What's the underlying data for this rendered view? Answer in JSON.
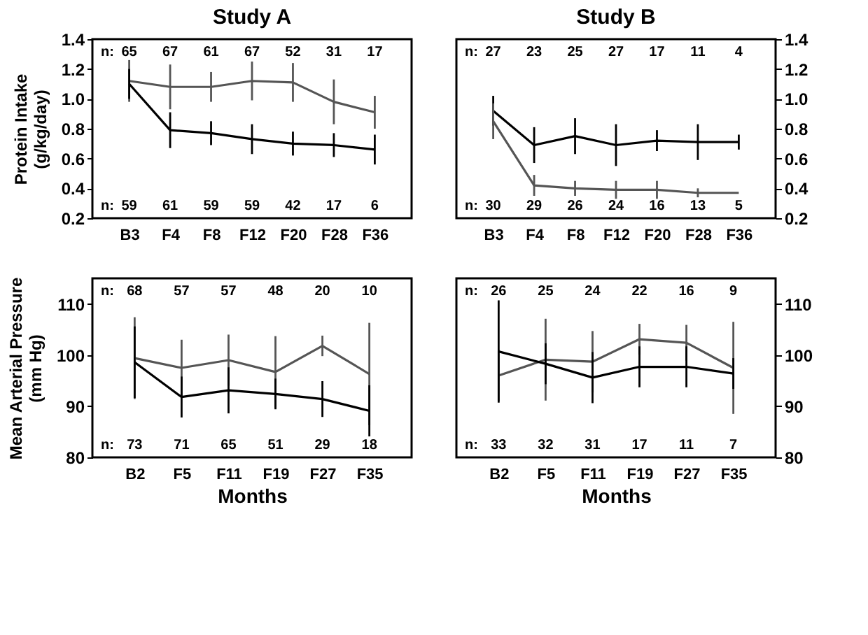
{
  "chart_data": [
    {
      "type": "line",
      "title": "Study A",
      "ylabel": "Protein Intake\n(g/kg/day)",
      "categories": [
        "B3",
        "F4",
        "F8",
        "F12",
        "F20",
        "F28",
        "F36"
      ],
      "ylim": [
        0.2,
        1.4
      ],
      "yticks": [
        0.2,
        0.4,
        0.6,
        0.8,
        {
          "value": 1.0,
          "label": "1.0"
        },
        1.2,
        1.4
      ],
      "grid": false,
      "series": [
        {
          "color": "#555555",
          "values": [
            1.12,
            1.08,
            1.08,
            1.12,
            1.11,
            0.98,
            0.91
          ],
          "errors": [
            0.14,
            0.15,
            0.1,
            0.13,
            0.13,
            0.15,
            0.11
          ]
        },
        {
          "color": "#000000",
          "values": [
            1.1,
            0.79,
            0.77,
            0.73,
            0.7,
            0.69,
            0.66
          ],
          "errors": [
            0.1,
            0.12,
            0.08,
            0.1,
            0.08,
            0.08,
            0.1
          ]
        }
      ],
      "annotations": [
        "n:",
        "65",
        "67",
        "61",
        "67",
        "52",
        "31",
        "17",
        "n:",
        "59",
        "61",
        "59",
        "59",
        "42",
        "17",
        "6"
      ]
    },
    {
      "type": "line",
      "title": "Study B",
      "categories": [
        "B3",
        "F4",
        "F8",
        "F12",
        "F20",
        "F28",
        "F36"
      ],
      "y2lim": [
        0.2,
        1.4
      ],
      "y2ticks": [
        0.2,
        0.4,
        0.6,
        0.8,
        {
          "value": 1.0,
          "label": "1.0"
        },
        1.2,
        1.4
      ],
      "grid": false,
      "series": [
        {
          "axis": "y2",
          "color": "#000000",
          "values": [
            0.92,
            0.69,
            0.75,
            0.69,
            0.72,
            0.71,
            0.71
          ],
          "errors": [
            0.1,
            0.12,
            0.12,
            0.14,
            0.07,
            0.12,
            0.05
          ]
        },
        {
          "axis": "y2",
          "color": "#555555",
          "values": [
            0.85,
            0.42,
            0.4,
            0.39,
            0.39,
            0.37,
            0.37
          ],
          "errors": [
            0.12,
            0.07,
            0.05,
            0.06,
            0.06,
            0.03,
            null
          ]
        }
      ],
      "annotations": [
        "n:",
        "27",
        "23",
        "25",
        "27",
        "17",
        "11",
        "4",
        "n:",
        "30",
        "29",
        "26",
        "24",
        "16",
        "13",
        "5"
      ]
    },
    {
      "type": "line",
      "ylabel": "Mean Arterial Pressure\n(mm Hg)",
      "xlabel": "Months",
      "categories": [
        "B2",
        "F5",
        "F11",
        "F19",
        "F27",
        "F35"
      ],
      "ylim": [
        80,
        115
      ],
      "yticks": [
        80,
        90,
        100,
        110
      ],
      "grid": false,
      "series": [
        {
          "color": "#555555",
          "values": [
            99.4,
            97.5,
            99.0,
            96.7,
            101.8,
            96.3
          ],
          "errors": [
            8,
            5.5,
            5,
            7,
            2,
            10
          ]
        },
        {
          "color": "#000000",
          "values": [
            98.6,
            91.8,
            93.1,
            92.4,
            91.4,
            89.1
          ],
          "errors": [
            7,
            4,
            4.5,
            3,
            3.5,
            5
          ]
        }
      ],
      "annotations": [
        "n:",
        "68",
        "57",
        "57",
        "48",
        "20",
        "10",
        "n:",
        "73",
        "71",
        "65",
        "51",
        "29",
        "18"
      ]
    },
    {
      "type": "line",
      "xlabel": "Months",
      "categories": [
        "B2",
        "F5",
        "F11",
        "F19",
        "F27",
        "F35"
      ],
      "y2lim": [
        80,
        115
      ],
      "y2ticks": [
        80,
        90,
        100,
        110
      ],
      "grid": false,
      "series": [
        {
          "axis": "y2",
          "color": "#555555",
          "values": [
            96.0,
            99.1,
            98.7,
            103.1,
            102.4,
            97.5
          ],
          "errors": [
            5,
            8,
            6,
            3,
            3.5,
            9
          ]
        },
        {
          "axis": "y2",
          "color": "#000000",
          "values": [
            100.7,
            98.3,
            95.6,
            97.7,
            97.7,
            96.4
          ],
          "errors": [
            10,
            4,
            5,
            4,
            4,
            3
          ]
        }
      ],
      "annotations": [
        "n:",
        "26",
        "25",
        "24",
        "22",
        "16",
        "9",
        "n:",
        "33",
        "32",
        "31",
        "17",
        "11",
        "7"
      ]
    }
  ]
}
